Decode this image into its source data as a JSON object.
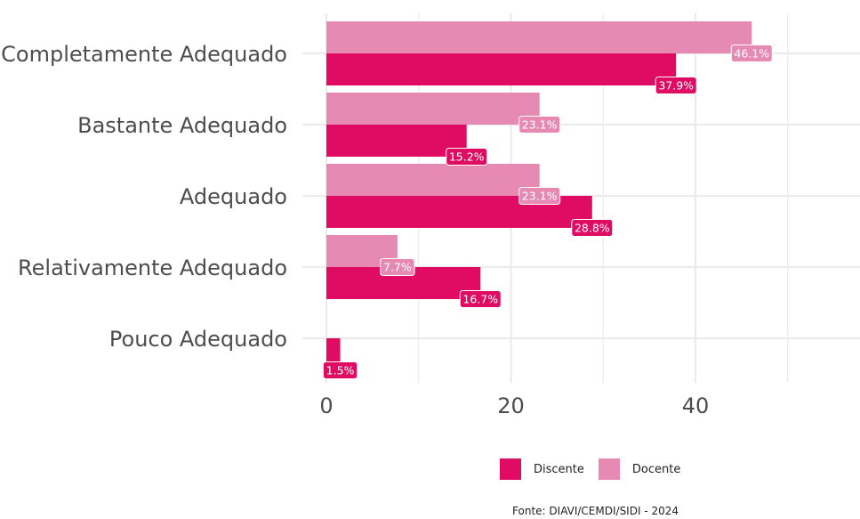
{
  "chart_data": {
    "type": "bar",
    "orientation": "horizontal",
    "categories": [
      "Completamente Adequado",
      "Bastante Adequado",
      "Adequado",
      "Relativamente Adequado",
      "Pouco Adequado"
    ],
    "series": [
      {
        "name": "Discente",
        "color": "#e00c64",
        "values": [
          37.9,
          15.2,
          28.8,
          16.7,
          1.5
        ],
        "labels": [
          "37.9%",
          "15.2%",
          "28.8%",
          "16.7%",
          "1.5%"
        ]
      },
      {
        "name": "Docente",
        "color": "#e68ab4",
        "values": [
          46.1,
          23.1,
          23.1,
          7.7,
          null
        ],
        "labels": [
          "46.1%",
          "23.1%",
          "23.1%",
          "7.7%",
          ""
        ]
      }
    ],
    "x_ticks": [
      0,
      20,
      40
    ],
    "xlim": [
      0,
      57
    ],
    "grid": true,
    "legend_position": "bottom"
  },
  "caption": "Fonte: DIAVI/CEMDI/SIDI - 2024"
}
